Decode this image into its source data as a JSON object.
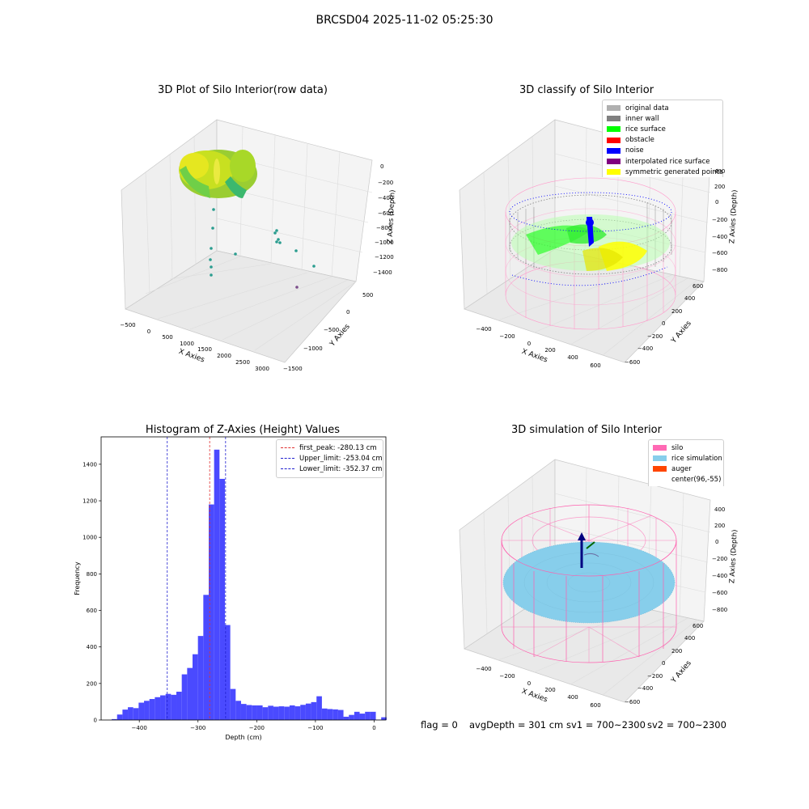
{
  "suptitle": "BRCSD04 2025-11-02 05:25:30",
  "panels": {
    "raw": {
      "title": "3D Plot of Silo Interior(row data)",
      "xlabel": "X Axies",
      "ylabel": "Y Axies",
      "zlabel": "Z Axies (Depth)",
      "xticks": [
        "−500",
        "0",
        "500",
        "1000",
        "1500",
        "2000",
        "2500",
        "3000"
      ],
      "yticks": [
        "500",
        "0",
        "−500",
        "−1000",
        "−1500"
      ],
      "zticks": [
        "0",
        "−200",
        "−400",
        "−600",
        "−800",
        "−1000",
        "−1200",
        "−1400"
      ]
    },
    "classify": {
      "title": "3D classify of Silo Interior",
      "xlabel": "X Axies",
      "ylabel": "Y Axies",
      "zlabel": "Z Axies (Depth)",
      "xticks": [
        "−400",
        "−200",
        "0",
        "200",
        "400",
        "600"
      ],
      "yticks": [
        "600",
        "400",
        "200",
        "0",
        "−200",
        "−400",
        "−600"
      ],
      "zticks": [
        "400",
        "200",
        "0",
        "−200",
        "−400",
        "−600",
        "−800"
      ],
      "legend": [
        {
          "label": "original data",
          "color": "#b0b0b0"
        },
        {
          "label": "inner wall",
          "color": "#808080"
        },
        {
          "label": "rice surface",
          "color": "#00ff00"
        },
        {
          "label": "obstacle",
          "color": "#ff0000"
        },
        {
          "label": "noise",
          "color": "#0000ff"
        },
        {
          "label": "interpolated rice surface",
          "color": "#800080"
        },
        {
          "label": "symmetric generated points",
          "color": "#ffff00"
        }
      ]
    },
    "simulation": {
      "title": "3D simulation of Silo Interior",
      "xlabel": "X Axies",
      "ylabel": "Y Axies",
      "zlabel": "Z Axies (Depth)",
      "xticks": [
        "−400",
        "−200",
        "0",
        "200",
        "400",
        "600"
      ],
      "yticks": [
        "600",
        "400",
        "200",
        "0",
        "−200",
        "−400",
        "−600"
      ],
      "zticks": [
        "400",
        "200",
        "0",
        "−200",
        "−400",
        "−600",
        "−800"
      ],
      "legend": [
        {
          "label": "silo",
          "color": "#ff69b4"
        },
        {
          "label": "rice simulation",
          "color": "#87ceeb"
        },
        {
          "label": "auger",
          "color": "#ff4500"
        },
        {
          "label": "center(96,-55)",
          "color": ""
        }
      ]
    }
  },
  "footer": {
    "flag": "flag = 0",
    "avg": "avgDepth = 301 cm",
    "sv1": "sv1 = 700~2300",
    "sv2": "sv2 = 700~2300"
  },
  "chart_data": {
    "type": "bar",
    "title": "Histogram of Z-Axies (Height) Values",
    "xlabel": "Depth (cm)",
    "ylabel": "Frequency",
    "xlim": [
      -465,
      20
    ],
    "ylim": [
      0,
      1550
    ],
    "xticks": [
      -400,
      -300,
      -200,
      -100,
      0
    ],
    "yticks": [
      0,
      200,
      400,
      600,
      800,
      1000,
      1200,
      1400
    ],
    "bin_width": 9.18,
    "bin_start": -447,
    "values": [
      5,
      30,
      57,
      70,
      65,
      95,
      105,
      115,
      125,
      135,
      143,
      138,
      155,
      250,
      285,
      360,
      460,
      685,
      1180,
      1480,
      1320,
      520,
      170,
      105,
      88,
      82,
      80,
      80,
      70,
      78,
      73,
      75,
      73,
      80,
      75,
      83,
      90,
      98,
      130,
      63,
      60,
      58,
      55,
      18,
      28,
      45,
      35,
      45,
      45,
      2,
      15
    ],
    "bar_color": "#4a4aff",
    "vlines": [
      {
        "label": "first_peak: -280.13 cm",
        "x": -280.13,
        "color": "#e03030"
      },
      {
        "label": "Upper_limit: -253.04 cm",
        "x": -253.04,
        "color": "#2020d0"
      },
      {
        "label": "Lower_limit: -352.37 cm",
        "x": -352.37,
        "color": "#2020d0"
      }
    ],
    "legend_position": "top-right"
  }
}
